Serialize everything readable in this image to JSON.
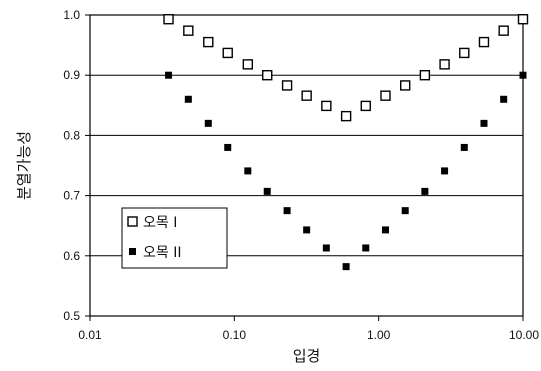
{
  "chart_data": {
    "type": "scatter",
    "xlabel": "입경",
    "ylabel": "분열가능성",
    "xscale": "log",
    "xlim": [
      0.01,
      10.0
    ],
    "ylim": [
      0.5,
      1.0
    ],
    "x_tick_labels": [
      "0.01",
      "0.10",
      "1.00",
      "10.00"
    ],
    "y_tick_labels": [
      "0.5",
      "0.6",
      "0.7",
      "0.8",
      "0.9",
      "1.0"
    ],
    "grid": "horizontal",
    "legend_position": "bottom-left",
    "series": [
      {
        "name": "오목 I",
        "marker": "open-square",
        "color": "#000000",
        "points": [
          [
            0.035,
            0.993
          ],
          [
            0.048,
            0.974
          ],
          [
            0.066,
            0.955
          ],
          [
            0.09,
            0.937
          ],
          [
            0.124,
            0.918
          ],
          [
            0.169,
            0.9
          ],
          [
            0.232,
            0.883
          ],
          [
            0.317,
            0.866
          ],
          [
            0.434,
            0.849
          ],
          [
            0.595,
            0.832
          ],
          [
            0.814,
            0.849
          ],
          [
            1.115,
            0.866
          ],
          [
            1.527,
            0.883
          ],
          [
            2.09,
            0.9
          ],
          [
            2.862,
            0.918
          ],
          [
            3.919,
            0.937
          ],
          [
            5.366,
            0.955
          ],
          [
            7.347,
            0.974
          ],
          [
            10.0,
            0.993
          ]
        ]
      },
      {
        "name": "오목 II",
        "marker": "filled-square",
        "color": "#000000",
        "points": [
          [
            0.035,
            0.9
          ],
          [
            0.048,
            0.86
          ],
          [
            0.066,
            0.82
          ],
          [
            0.09,
            0.78
          ],
          [
            0.124,
            0.741
          ],
          [
            0.169,
            0.707
          ],
          [
            0.232,
            0.675
          ],
          [
            0.317,
            0.643
          ],
          [
            0.434,
            0.613
          ],
          [
            0.595,
            0.582
          ],
          [
            0.814,
            0.613
          ],
          [
            1.115,
            0.643
          ],
          [
            1.527,
            0.675
          ],
          [
            2.09,
            0.707
          ],
          [
            2.862,
            0.741
          ],
          [
            3.919,
            0.78
          ],
          [
            5.366,
            0.82
          ],
          [
            7.347,
            0.86
          ],
          [
            10.0,
            0.9
          ]
        ]
      }
    ]
  }
}
